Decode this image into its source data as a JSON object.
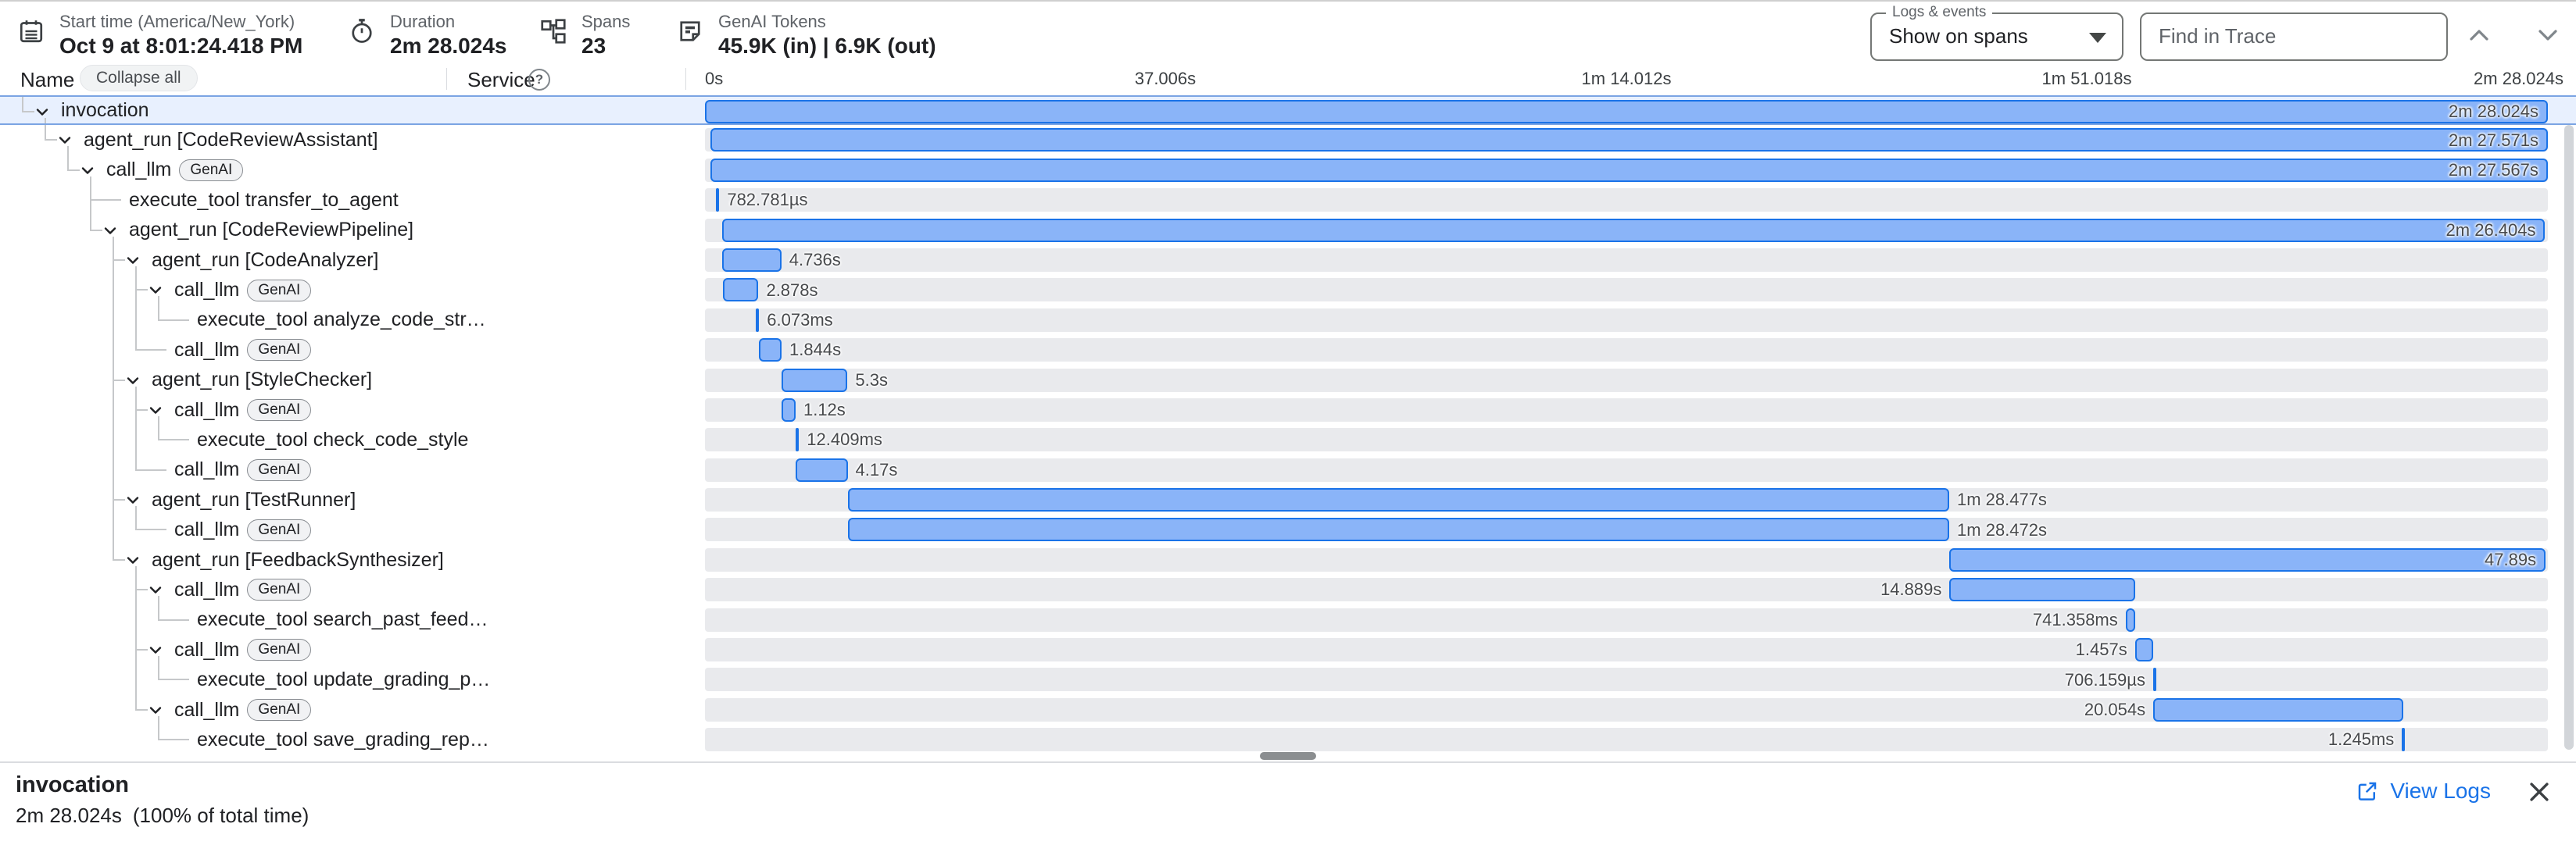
{
  "header": {
    "stats": [
      {
        "icon": "calendar-icon",
        "label": "Start time (America/New_York)",
        "value": "Oct 9 at 8:01:24.418 PM"
      },
      {
        "icon": "timer-icon",
        "label": "Duration",
        "value": "2m 28.024s"
      },
      {
        "icon": "spans-icon",
        "label": "Spans",
        "value": "23"
      },
      {
        "icon": "tokens-icon",
        "label": "GenAI Tokens",
        "value": "45.9K (in) | 6.9K (out)"
      }
    ],
    "logs_events": {
      "label": "Logs & events",
      "value": "Show on spans"
    },
    "find_placeholder": "Find in Trace"
  },
  "columns": {
    "name": "Name",
    "collapse_all": "Collapse all",
    "service": "Service",
    "help": "?"
  },
  "timeline": {
    "ticks": [
      "0s",
      "37.006s",
      "1m 14.012s",
      "1m 51.018s",
      "2m 28.024s"
    ],
    "total_s": 148.024
  },
  "colors": {
    "bar_fill": "#8ab4f8",
    "bar_border": "#1a73e8",
    "track": "#e9eaed",
    "selected_row": "#e8f0fe",
    "link": "#1a73e8"
  },
  "rows": [
    {
      "name": "invocation",
      "level": 0,
      "connector": "elbow",
      "expandable": true,
      "selected": true,
      "guides": [],
      "start": 0,
      "dur": 148.024,
      "dlabel": "2m 28.024s",
      "pos": "inside"
    },
    {
      "name": "agent_run [CodeReviewAssistant]",
      "level": 1,
      "connector": "elbow",
      "expandable": true,
      "guides": [],
      "start": 0.45,
      "dur": 147.571,
      "dlabel": "2m 27.571s",
      "pos": "inside"
    },
    {
      "name": "call_llm",
      "badge": "GenAI",
      "level": 2,
      "connector": "elbow",
      "expandable": true,
      "guides": [],
      "start": 0.45,
      "dur": 147.567,
      "dlabel": "2m 27.567s",
      "pos": "inside"
    },
    {
      "name": "execute_tool transfer_to_agent",
      "level": 3,
      "connector": "tee",
      "expandable": false,
      "guides": [],
      "start": 0.9,
      "dur": 0.000783,
      "dlabel": "782.781µs",
      "pos": "right",
      "tick": true
    },
    {
      "name": "agent_run [CodeReviewPipeline]",
      "level": 3,
      "connector": "elbow",
      "expandable": true,
      "guides": [],
      "start": 1.4,
      "dur": 146.404,
      "dlabel": "2m 26.404s",
      "pos": "inside"
    },
    {
      "name": "agent_run [CodeAnalyzer]",
      "level": 4,
      "connector": "tee",
      "expandable": true,
      "guides": [],
      "start": 1.4,
      "dur": 4.736,
      "dlabel": "4.736s",
      "pos": "right"
    },
    {
      "name": "call_llm",
      "badge": "GenAI",
      "level": 5,
      "connector": "tee",
      "expandable": true,
      "guides": [
        4
      ],
      "start": 1.42,
      "dur": 2.878,
      "dlabel": "2.878s",
      "pos": "right"
    },
    {
      "name": "execute_tool analyze_code_str…",
      "level": 6,
      "connector": "elbow",
      "expandable": false,
      "guides": [
        4,
        5
      ],
      "start": 4.1,
      "dur": 0.006073,
      "dlabel": "6.073ms",
      "pos": "right",
      "tick": true
    },
    {
      "name": "call_llm",
      "badge": "GenAI",
      "level": 5,
      "connector": "elbow",
      "expandable": false,
      "guides": [
        4
      ],
      "start": 4.31,
      "dur": 1.844,
      "dlabel": "1.844s",
      "pos": "right"
    },
    {
      "name": "agent_run [StyleChecker]",
      "level": 4,
      "connector": "tee",
      "expandable": true,
      "guides": [],
      "start": 6.15,
      "dur": 5.3,
      "dlabel": "5.3s",
      "pos": "right"
    },
    {
      "name": "call_llm",
      "badge": "GenAI",
      "level": 5,
      "connector": "tee",
      "expandable": true,
      "guides": [
        4
      ],
      "start": 6.16,
      "dur": 1.12,
      "dlabel": "1.12s",
      "pos": "right"
    },
    {
      "name": "execute_tool check_code_style",
      "level": 6,
      "connector": "elbow",
      "expandable": false,
      "guides": [
        4,
        5
      ],
      "start": 7.3,
      "dur": 0.012409,
      "dlabel": "12.409ms",
      "pos": "right",
      "tick": true
    },
    {
      "name": "call_llm",
      "badge": "GenAI",
      "level": 5,
      "connector": "elbow",
      "expandable": false,
      "guides": [
        4
      ],
      "start": 7.29,
      "dur": 4.17,
      "dlabel": "4.17s",
      "pos": "right"
    },
    {
      "name": "agent_run [TestRunner]",
      "level": 4,
      "connector": "tee",
      "expandable": true,
      "guides": [],
      "start": 11.46,
      "dur": 88.477,
      "dlabel": "1m 28.477s",
      "pos": "right"
    },
    {
      "name": "call_llm",
      "badge": "GenAI",
      "level": 5,
      "connector": "elbow",
      "expandable": false,
      "guides": [
        4
      ],
      "start": 11.47,
      "dur": 88.472,
      "dlabel": "1m 28.472s",
      "pos": "right"
    },
    {
      "name": "agent_run [FeedbackSynthesizer]",
      "level": 4,
      "connector": "elbow",
      "expandable": true,
      "guides": [],
      "start": 99.95,
      "dur": 47.89,
      "dlabel": "47.89s",
      "pos": "inside"
    },
    {
      "name": "call_llm",
      "badge": "GenAI",
      "level": 5,
      "connector": "tee",
      "expandable": true,
      "guides": [],
      "start": 99.96,
      "dur": 14.889,
      "dlabel": "14.889s",
      "pos": "left"
    },
    {
      "name": "execute_tool search_past_feed…",
      "level": 6,
      "connector": "elbow",
      "expandable": false,
      "guides": [
        5
      ],
      "start": 114.11,
      "dur": 0.741,
      "dlabel": "741.358ms",
      "pos": "left"
    },
    {
      "name": "call_llm",
      "badge": "GenAI",
      "level": 5,
      "connector": "tee",
      "expandable": true,
      "guides": [],
      "start": 114.86,
      "dur": 1.457,
      "dlabel": "1.457s",
      "pos": "left"
    },
    {
      "name": "execute_tool update_grading_p…",
      "level": 6,
      "connector": "elbow",
      "expandable": false,
      "guides": [
        5
      ],
      "start": 116.32,
      "dur": 0.000706,
      "dlabel": "706.159µs",
      "pos": "left",
      "tick": true
    },
    {
      "name": "call_llm",
      "badge": "GenAI",
      "level": 5,
      "connector": "elbow",
      "expandable": true,
      "guides": [],
      "start": 116.33,
      "dur": 20.054,
      "dlabel": "20.054s",
      "pos": "left"
    },
    {
      "name": "execute_tool save_grading_rep…",
      "level": 6,
      "connector": "elbow",
      "expandable": false,
      "guides": [],
      "start": 136.3,
      "dur": 0.001245,
      "dlabel": "1.245ms",
      "pos": "left",
      "tick": true
    }
  ],
  "footer": {
    "title": "invocation",
    "duration": "2m 28.024s",
    "percent": "(100% of total time)",
    "view_logs": "View Logs"
  }
}
